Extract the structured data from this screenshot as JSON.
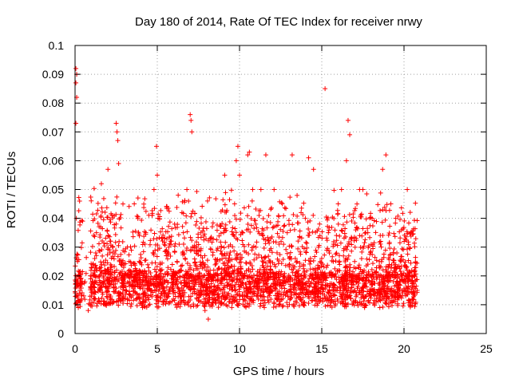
{
  "chart_data": {
    "type": "scatter",
    "title": "Day 180 of 2014, Rate Of TEC Index for receiver nrwy",
    "xlabel": "GPS time / hours",
    "ylabel": "ROTI / TECUs",
    "xlim": [
      0,
      25
    ],
    "ylim": [
      0,
      0.1
    ],
    "x_ticks": [
      "0",
      "5",
      "10",
      "15",
      "20",
      "25"
    ],
    "y_ticks": [
      "0",
      "0.01",
      "0.02",
      "0.03",
      "0.04",
      "0.05",
      "0.06",
      "0.07",
      "0.08",
      "0.09",
      "0.1"
    ],
    "grid": true,
    "marker": "+",
    "marker_color": "#ff0000",
    "series": [
      {
        "x": [
          0.0,
          0.05,
          0.05,
          0.1,
          0.1,
          0.05,
          0.08,
          0.15,
          0.2,
          0.12,
          0.3,
          0.4,
          0.6,
          0.8,
          1.0,
          1.2,
          1.3,
          1.5,
          1.6,
          1.8,
          2.0,
          2.1,
          2.3,
          2.5,
          2.55,
          2.6,
          2.65,
          2.7,
          2.9,
          3.1,
          3.3,
          3.6,
          3.9,
          4.1,
          4.3,
          4.6,
          4.8,
          4.95,
          5.0,
          5.05,
          5.2,
          5.4,
          5.7,
          6.0,
          6.2,
          6.5,
          6.8,
          6.9,
          7.0,
          7.05,
          7.1,
          7.3,
          7.6,
          7.9,
          8.1,
          8.3,
          8.6,
          8.9,
          9.1,
          9.4,
          9.7,
          9.8,
          9.9,
          10.0,
          10.2,
          10.5,
          10.6,
          10.8,
          11.0,
          11.3,
          11.6,
          11.9,
          12.1,
          12.4,
          12.6,
          12.9,
          13.2,
          13.5,
          13.8,
          14.0,
          14.2,
          14.5,
          14.8,
          15.0,
          15.2,
          15.4,
          15.7,
          16.0,
          16.2,
          16.5,
          16.6,
          16.7,
          17.0,
          17.3,
          17.5,
          17.8,
          18.1,
          18.5,
          18.7,
          18.9,
          19.2,
          19.5,
          19.8,
          20.0,
          20.2,
          20.4,
          20.6,
          20.8
        ],
        "y": [
          0.0145,
          0.092,
          0.087,
          0.09,
          0.082,
          0.073,
          0.04,
          0.025,
          0.02,
          0.01,
          0.015,
          0.012,
          0.018,
          0.008,
          0.013,
          0.02,
          0.035,
          0.015,
          0.052,
          0.022,
          0.057,
          0.018,
          0.03,
          0.073,
          0.07,
          0.067,
          0.059,
          0.025,
          0.02,
          0.015,
          0.022,
          0.045,
          0.025,
          0.018,
          0.035,
          0.015,
          0.05,
          0.065,
          0.055,
          0.04,
          0.022,
          0.018,
          0.03,
          0.015,
          0.025,
          0.042,
          0.05,
          0.046,
          0.076,
          0.074,
          0.07,
          0.02,
          0.015,
          0.008,
          0.005,
          0.01,
          0.015,
          0.03,
          0.055,
          0.02,
          0.045,
          0.06,
          0.065,
          0.055,
          0.035,
          0.062,
          0.063,
          0.05,
          0.03,
          0.05,
          0.062,
          0.015,
          0.05,
          0.02,
          0.045,
          0.035,
          0.062,
          0.025,
          0.015,
          0.04,
          0.061,
          0.057,
          0.03,
          0.02,
          0.085,
          0.035,
          0.025,
          0.045,
          0.05,
          0.06,
          0.074,
          0.069,
          0.025,
          0.05,
          0.05,
          0.035,
          0.015,
          0.025,
          0.057,
          0.062,
          0.045,
          0.04,
          0.025,
          0.018,
          0.05,
          0.035,
          0.02,
          0.015
        ]
      }
    ]
  }
}
